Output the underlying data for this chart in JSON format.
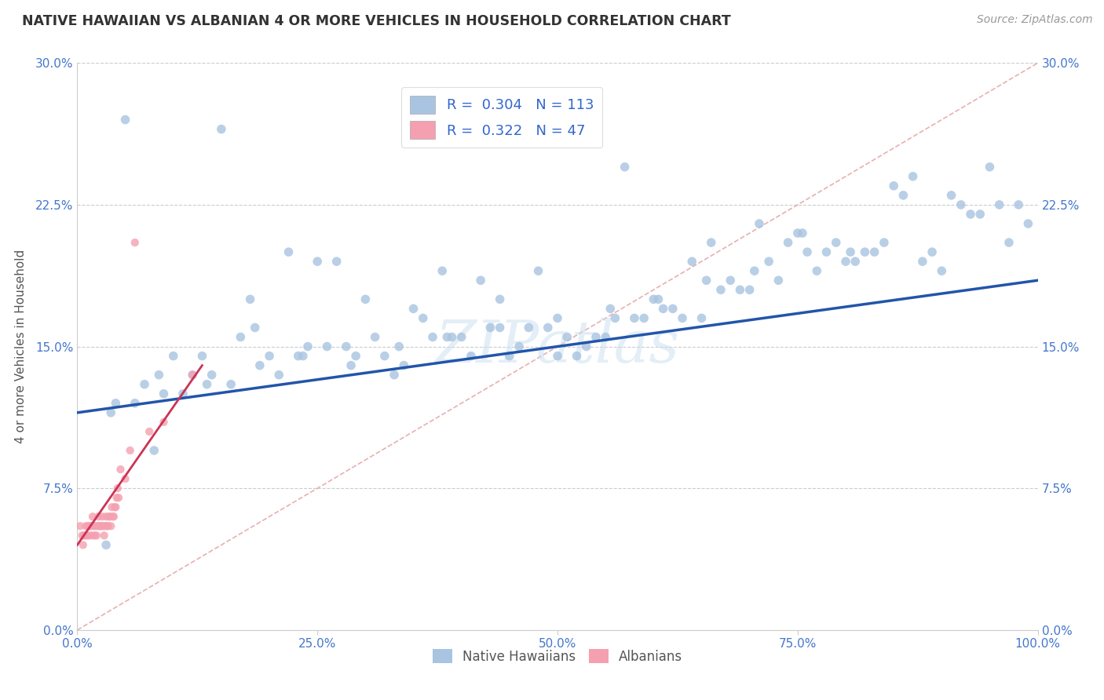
{
  "title": "NATIVE HAWAIIAN VS ALBANIAN 4 OR MORE VEHICLES IN HOUSEHOLD CORRELATION CHART",
  "source": "Source: ZipAtlas.com",
  "ylabel": "4 or more Vehicles in Household",
  "xlim": [
    0,
    100
  ],
  "ylim": [
    0,
    30
  ],
  "xticks": [
    0,
    25,
    50,
    75,
    100
  ],
  "xtick_labels": [
    "0.0%",
    "25.0%",
    "50.0%",
    "75.0%",
    "100.0%"
  ],
  "yticks": [
    0,
    7.5,
    15.0,
    22.5,
    30.0
  ],
  "ytick_labels": [
    "0.0%",
    "7.5%",
    "15.0%",
    "22.5%",
    "30.0%"
  ],
  "legend_r_blue": "0.304",
  "legend_n_blue": "113",
  "legend_r_pink": "0.322",
  "legend_n_pink": "47",
  "blue_color": "#a8c4e0",
  "pink_color": "#f4a0b0",
  "line_blue": "#2255aa",
  "line_pink": "#cc3355",
  "diagonal_color": "#e8b0b0",
  "watermark": "ZIPatlas",
  "blue_scatter_x": [
    5.0,
    15.0,
    25.0,
    30.0,
    35.0,
    38.0,
    42.0,
    45.0,
    48.0,
    50.0,
    10.0,
    18.0,
    22.0,
    27.0,
    32.0,
    36.0,
    40.0,
    44.0,
    52.0,
    55.0,
    58.0,
    60.0,
    62.0,
    64.0,
    66.0,
    68.0,
    70.0,
    72.0,
    74.0,
    76.0,
    78.0,
    80.0,
    82.0,
    84.0,
    86.0,
    88.0,
    90.0,
    92.0,
    94.0,
    96.0,
    98.0,
    63.0,
    57.0,
    47.0,
    33.0,
    28.0,
    23.0,
    20.0,
    17.0,
    13.0,
    8.0,
    3.0,
    53.0,
    43.0,
    37.0,
    31.0,
    26.0,
    21.0,
    16.0,
    11.0,
    6.0,
    46.0,
    41.0,
    39.0,
    34.0,
    29.0,
    24.0,
    19.0,
    14.0,
    9.0,
    4.0,
    51.0,
    49.0,
    56.0,
    61.0,
    65.0,
    69.0,
    73.0,
    77.0,
    81.0,
    85.0,
    89.0,
    93.0,
    97.0,
    54.0,
    59.0,
    67.0,
    71.0,
    75.0,
    79.0,
    83.0,
    87.0,
    91.0,
    95.0,
    99.0,
    7.0,
    12.0,
    50.0,
    44.0,
    38.5,
    33.5,
    28.5,
    23.5,
    18.5,
    13.5,
    8.5,
    3.5,
    55.5,
    60.5,
    65.5,
    70.5,
    75.5,
    80.5
  ],
  "blue_scatter_y": [
    27.0,
    26.5,
    19.5,
    17.5,
    17.0,
    19.0,
    18.5,
    14.5,
    19.0,
    16.5,
    14.5,
    17.5,
    20.0,
    19.5,
    14.5,
    16.5,
    15.5,
    16.0,
    14.5,
    15.5,
    16.5,
    17.5,
    17.0,
    19.5,
    20.5,
    18.5,
    18.0,
    19.5,
    20.5,
    20.0,
    20.0,
    19.5,
    20.0,
    20.5,
    23.0,
    19.5,
    19.0,
    22.5,
    22.0,
    22.5,
    22.5,
    16.5,
    24.5,
    16.0,
    13.5,
    15.0,
    14.5,
    14.5,
    15.5,
    14.5,
    9.5,
    4.5,
    15.0,
    16.0,
    15.5,
    15.5,
    15.0,
    13.5,
    13.0,
    12.5,
    12.0,
    15.0,
    14.5,
    15.5,
    14.0,
    14.5,
    15.0,
    14.0,
    13.5,
    12.5,
    12.0,
    15.5,
    16.0,
    16.5,
    17.0,
    16.5,
    18.0,
    18.5,
    19.0,
    19.5,
    23.5,
    20.0,
    22.0,
    20.5,
    15.5,
    16.5,
    18.0,
    21.5,
    21.0,
    20.5,
    20.0,
    24.0,
    23.0,
    24.5,
    21.5,
    13.0,
    13.5,
    14.5,
    17.5,
    15.5,
    15.0,
    14.0,
    14.5,
    16.0,
    13.0,
    13.5,
    11.5,
    17.0,
    17.5,
    18.5,
    19.0,
    21.0,
    20.0
  ],
  "pink_scatter_x": [
    0.3,
    0.5,
    0.6,
    0.7,
    0.8,
    0.9,
    1.0,
    1.1,
    1.2,
    1.3,
    1.4,
    1.5,
    1.6,
    1.7,
    1.8,
    1.9,
    2.0,
    2.1,
    2.2,
    2.3,
    2.4,
    2.5,
    2.6,
    2.7,
    2.8,
    2.9,
    3.0,
    3.1,
    3.2,
    3.3,
    3.4,
    3.5,
    3.6,
    3.7,
    3.8,
    3.9,
    4.0,
    4.1,
    4.2,
    4.3,
    4.5,
    5.0,
    5.5,
    6.0,
    7.5,
    9.0,
    12.0
  ],
  "pink_scatter_y": [
    5.5,
    5.0,
    4.5,
    5.0,
    5.0,
    5.5,
    5.0,
    5.5,
    5.0,
    5.5,
    5.5,
    5.0,
    6.0,
    5.5,
    5.0,
    5.5,
    5.0,
    5.5,
    6.0,
    5.5,
    5.5,
    5.5,
    6.0,
    5.5,
    5.0,
    5.5,
    6.0,
    5.5,
    5.5,
    6.0,
    6.0,
    5.5,
    6.5,
    6.0,
    6.0,
    6.5,
    6.5,
    7.0,
    7.5,
    7.0,
    8.5,
    8.0,
    9.5,
    20.5,
    10.5,
    11.0,
    13.5
  ],
  "blue_marker_size": 70,
  "pink_marker_size": 55,
  "blue_line_x": [
    0,
    100
  ],
  "blue_line_y": [
    11.5,
    18.5
  ],
  "pink_line_x": [
    0,
    13
  ],
  "pink_line_y": [
    4.5,
    14.0
  ],
  "diag_line_x": [
    0,
    100
  ],
  "diag_line_y": [
    0,
    30
  ]
}
